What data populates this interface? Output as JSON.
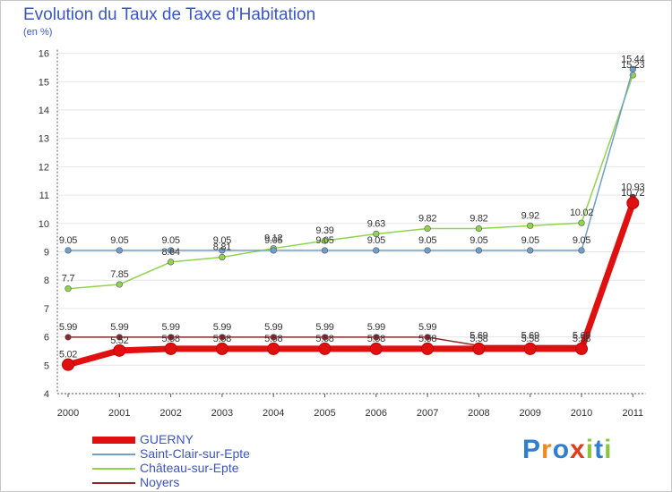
{
  "title": "Evolution du Taux de Taxe d'Habitation",
  "subtitle": "(en %)",
  "logo": {
    "text": "Proxiti",
    "letter_colors": [
      "#2f7fd0",
      "#f08a1c",
      "#2f7fd0",
      "#e03c1c",
      "#8cc63f",
      "#2f7fd0",
      "#8cc63f"
    ]
  },
  "chart_data": {
    "type": "line",
    "x": [
      "2000",
      "2001",
      "2002",
      "2003",
      "2004",
      "2005",
      "2006",
      "2007",
      "2008",
      "2009",
      "2010",
      "2011"
    ],
    "ylim": [
      4,
      16
    ],
    "yticks": [
      "4",
      "5",
      "6",
      "7",
      "8",
      "9",
      "10",
      "11",
      "12",
      "13",
      "14",
      "15",
      "16"
    ],
    "series": [
      {
        "name": "Noyers",
        "color": "#8b2a2a",
        "values": [
          5.99,
          5.99,
          5.99,
          5.99,
          5.99,
          5.99,
          5.99,
          5.99,
          5.69,
          5.69,
          5.69,
          10.93
        ],
        "labels": [
          "5.99",
          "5.99",
          "5.99",
          "5.99",
          "5.99",
          "5.99",
          "5.99",
          "5.99",
          "5.69",
          "5.69",
          "5.69",
          "10.93"
        ]
      },
      {
        "name": "Château-sur-Epte",
        "color": "#8fd44a",
        "values": [
          7.7,
          7.85,
          8.64,
          8.81,
          9.12,
          9.39,
          9.63,
          9.82,
          9.82,
          9.92,
          10.02,
          15.23
        ],
        "labels": [
          "7.7",
          "7.85",
          "8.64",
          "8.81",
          "9.12",
          "9.39",
          "9.63",
          "9.82",
          "9.82",
          "9.92",
          "10.02",
          "15.23"
        ]
      },
      {
        "name": "Saint-Clair-sur-Epte",
        "color": "#6f9fc8",
        "values": [
          9.05,
          9.05,
          9.05,
          9.05,
          9.05,
          9.05,
          9.05,
          9.05,
          9.05,
          9.05,
          9.05,
          15.44
        ],
        "labels": [
          "9.05",
          "9.05",
          "9.05",
          "9.05",
          "9.05",
          "9.05",
          "9.05",
          "9.05",
          "9.05",
          "9.05",
          "9.05",
          "15.44"
        ]
      },
      {
        "name": "GUERNY",
        "color": "#e01010",
        "values": [
          5.02,
          5.52,
          5.58,
          5.58,
          5.58,
          5.58,
          5.58,
          5.58,
          5.58,
          5.58,
          5.58,
          10.72
        ],
        "labels": [
          "5.02",
          "5.52",
          "5.58",
          "5.58",
          "5.58",
          "5.58",
          "5.58",
          "5.58",
          "5.58",
          "5.58",
          "5.58",
          "10.72"
        ]
      }
    ],
    "legend": [
      {
        "name": "GUERNY",
        "color": "#e01010"
      },
      {
        "name": "Saint-Clair-sur-Epte",
        "color": "#6f9fc8"
      },
      {
        "name": "Château-sur-Epte",
        "color": "#8fd44a"
      },
      {
        "name": "Noyers",
        "color": "#8b2a2a"
      }
    ]
  }
}
